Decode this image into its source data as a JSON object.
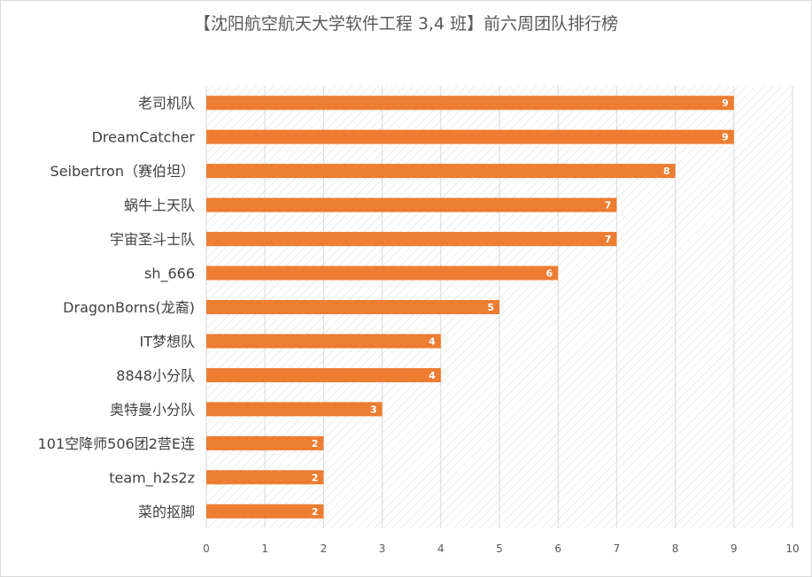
{
  "chart_data": {
    "type": "bar",
    "orientation": "horizontal",
    "title": "【沈阳航空航天大学软件工程 3,4 班】前六周团队排行榜",
    "categories": [
      "老司机队",
      "DreamCatcher",
      "Seibertron（赛伯坦）",
      "蜗牛上天队",
      "宇宙圣斗士队",
      "sh_666",
      "DragonBorns(龙裔)",
      "IT梦想队",
      "8848小分队",
      "奥特曼小分队",
      "101空降师506团2营E连",
      "team_h2s2z",
      "菜的抠脚"
    ],
    "values": [
      9,
      9,
      8,
      7,
      7,
      6,
      5,
      4,
      4,
      3,
      2,
      2,
      2
    ],
    "xlim": [
      0,
      10
    ],
    "xticks": [
      0,
      1,
      2,
      3,
      4,
      5,
      6,
      7,
      8,
      9,
      10
    ],
    "bar_color": "#ed7d31",
    "gridlines": true,
    "data_labels": true,
    "legend": "none"
  }
}
